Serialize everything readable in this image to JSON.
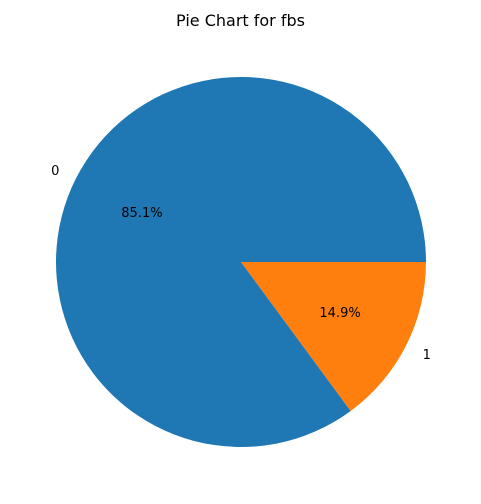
{
  "chart_data": {
    "type": "pie",
    "title": "Pie Chart for fbs",
    "categories": [
      "0",
      "1"
    ],
    "values": [
      85.1,
      14.9
    ],
    "percent_labels": [
      "85.1%",
      "14.9%"
    ],
    "colors": [
      "#1f77b4",
      "#ff7f0e"
    ],
    "start_angle_deg": 0,
    "direction": "counterclockwise"
  }
}
